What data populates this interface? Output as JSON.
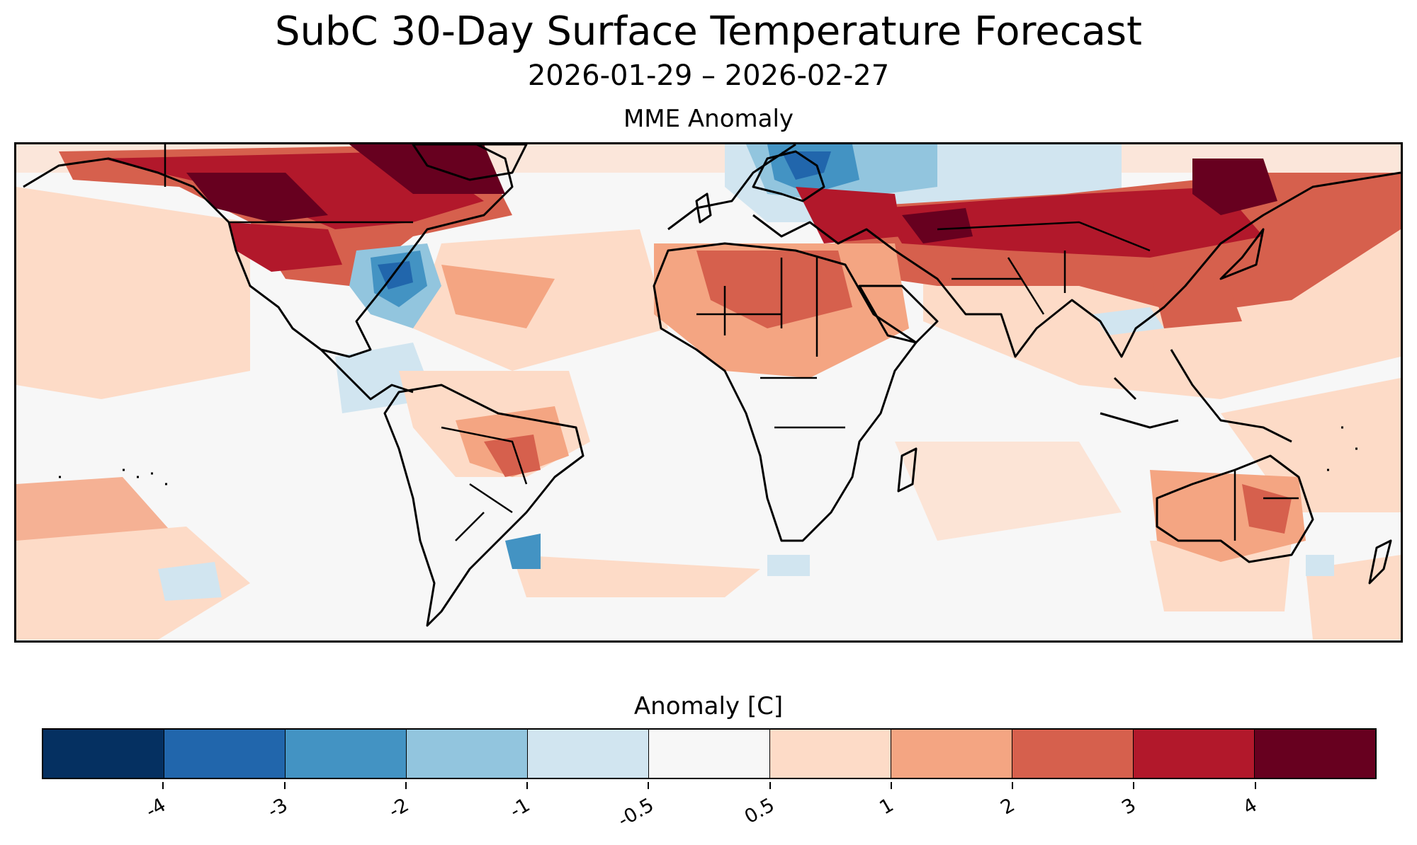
{
  "title": "SubC 30-Day Surface Temperature Forecast",
  "subtitle": "2026-01-29 – 2026-02-27",
  "panel_title": "MME Anomaly",
  "colorbar": {
    "label": "Anomaly [C]",
    "bins": [
      {
        "color": "#053061"
      },
      {
        "color": "#2166ac"
      },
      {
        "color": "#4393c3"
      },
      {
        "color": "#92c5de"
      },
      {
        "color": "#d1e5f0"
      },
      {
        "color": "#f7f7f7"
      },
      {
        "color": "#fddbc7"
      },
      {
        "color": "#f4a582"
      },
      {
        "color": "#d6604d"
      },
      {
        "color": "#b2182b"
      },
      {
        "color": "#67001f"
      }
    ],
    "ticks": [
      "-4",
      "-3",
      "-2",
      "-1",
      "-0.5",
      "0.5",
      "1",
      "2",
      "3",
      "4"
    ]
  },
  "map": {
    "projection": "PlateCarree (global, 180°W – 180°E, ~65°S – ~80°N)",
    "background_color": "#f7f7f7",
    "coastline_color": "#000000"
  }
}
